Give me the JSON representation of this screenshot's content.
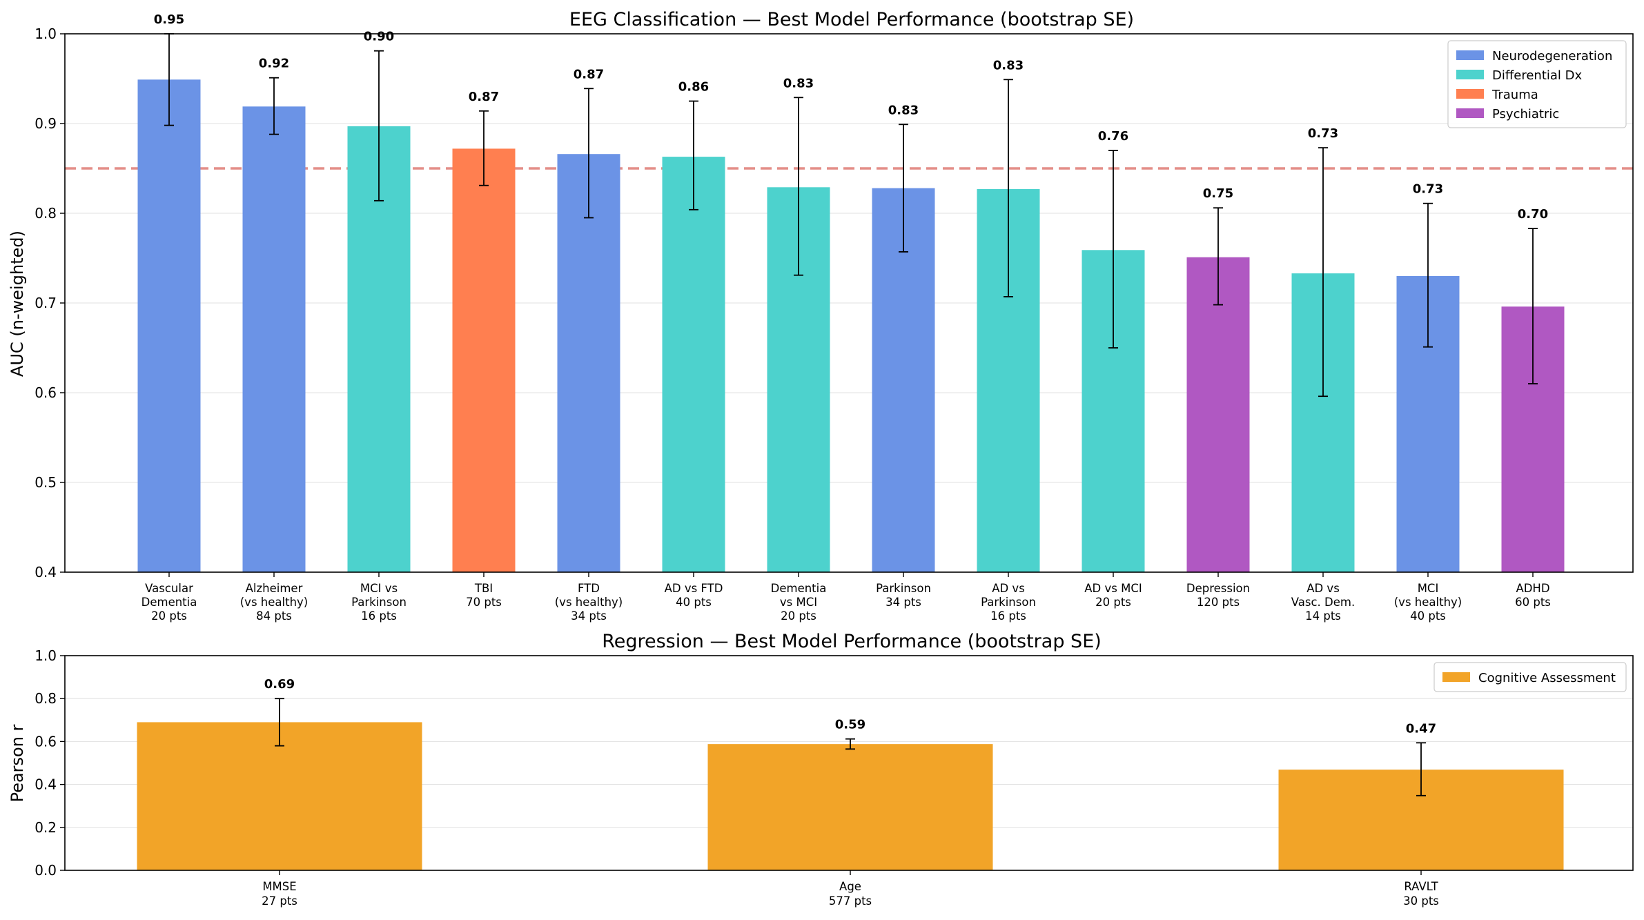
{
  "chart_data": [
    {
      "type": "bar",
      "title": "EEG Classification — Best Model Performance (bootstrap SE)",
      "xlabel": "",
      "ylabel": "AUC (n-weighted)",
      "ylim": [
        0.4,
        1.0
      ],
      "yticks": [
        "0.4",
        "0.5",
        "0.6",
        "0.7",
        "0.8",
        "0.9",
        "1.0"
      ],
      "reference_line": 0.85,
      "legend_position": "top-right",
      "legend": [
        {
          "name": "Neurodegeneration",
          "color": "#6b93e6"
        },
        {
          "name": "Differential Dx",
          "color": "#4dd2cd"
        },
        {
          "name": "Trauma",
          "color": "#ff7f50"
        },
        {
          "name": "Psychiatric",
          "color": "#b058c2"
        }
      ],
      "bars": [
        {
          "lines": [
            "Vascular",
            "Dementia",
            "20 pts"
          ],
          "value": 0.949,
          "err_lo": 0.898,
          "err_hi": 1.0,
          "label": "0.95",
          "group": "Neurodegeneration"
        },
        {
          "lines": [
            "Alzheimer",
            "(vs healthy)",
            "84 pts"
          ],
          "value": 0.919,
          "err_lo": 0.888,
          "err_hi": 0.951,
          "label": "0.92",
          "group": "Neurodegeneration"
        },
        {
          "lines": [
            "MCI vs",
            "Parkinson",
            "16 pts"
          ],
          "value": 0.897,
          "err_lo": 0.814,
          "err_hi": 0.981,
          "label": "0.90",
          "group": "Differential Dx"
        },
        {
          "lines": [
            "TBI",
            "70 pts"
          ],
          "value": 0.872,
          "err_lo": 0.831,
          "err_hi": 0.914,
          "label": "0.87",
          "group": "Trauma"
        },
        {
          "lines": [
            "FTD",
            "(vs healthy)",
            "34 pts"
          ],
          "value": 0.866,
          "err_lo": 0.795,
          "err_hi": 0.939,
          "label": "0.87",
          "group": "Neurodegeneration"
        },
        {
          "lines": [
            "AD vs FTD",
            "40 pts"
          ],
          "value": 0.863,
          "err_lo": 0.804,
          "err_hi": 0.925,
          "label": "0.86",
          "group": "Differential Dx"
        },
        {
          "lines": [
            "Dementia",
            "vs MCI",
            "20 pts"
          ],
          "value": 0.829,
          "err_lo": 0.731,
          "err_hi": 0.929,
          "label": "0.83",
          "group": "Differential Dx"
        },
        {
          "lines": [
            "Parkinson",
            "34 pts"
          ],
          "value": 0.828,
          "err_lo": 0.757,
          "err_hi": 0.899,
          "label": "0.83",
          "group": "Neurodegeneration"
        },
        {
          "lines": [
            "AD vs",
            "Parkinson",
            "16 pts"
          ],
          "value": 0.827,
          "err_lo": 0.707,
          "err_hi": 0.949,
          "label": "0.83",
          "group": "Differential Dx"
        },
        {
          "lines": [
            "AD vs MCI",
            "20 pts"
          ],
          "value": 0.759,
          "err_lo": 0.65,
          "err_hi": 0.87,
          "label": "0.76",
          "group": "Differential Dx"
        },
        {
          "lines": [
            "Depression",
            "120 pts"
          ],
          "value": 0.751,
          "err_lo": 0.698,
          "err_hi": 0.806,
          "label": "0.75",
          "group": "Psychiatric"
        },
        {
          "lines": [
            "AD vs",
            "Vasc. Dem.",
            "14 pts"
          ],
          "value": 0.733,
          "err_lo": 0.596,
          "err_hi": 0.873,
          "label": "0.73",
          "group": "Differential Dx"
        },
        {
          "lines": [
            "MCI",
            "(vs healthy)",
            "40 pts"
          ],
          "value": 0.73,
          "err_lo": 0.651,
          "err_hi": 0.811,
          "label": "0.73",
          "group": "Neurodegeneration"
        },
        {
          "lines": [
            "ADHD",
            "60 pts"
          ],
          "value": 0.696,
          "err_lo": 0.61,
          "err_hi": 0.783,
          "label": "0.70",
          "group": "Psychiatric"
        }
      ]
    },
    {
      "type": "bar",
      "title": "Regression — Best Model Performance (bootstrap SE)",
      "xlabel": "",
      "ylabel": "Pearson r",
      "ylim": [
        0.0,
        1.0
      ],
      "yticks": [
        "0.0",
        "0.2",
        "0.4",
        "0.6",
        "0.8",
        "1.0"
      ],
      "legend_position": "top-right",
      "legend": [
        {
          "name": "Cognitive Assessment",
          "color": "#f2a428"
        }
      ],
      "bars": [
        {
          "lines": [
            "MMSE",
            "27 pts"
          ],
          "value": 0.69,
          "err_lo": 0.58,
          "err_hi": 0.8,
          "label": "0.69",
          "group": "Cognitive Assessment"
        },
        {
          "lines": [
            "Age",
            "577 pts"
          ],
          "value": 0.588,
          "err_lo": 0.565,
          "err_hi": 0.612,
          "label": "0.59",
          "group": "Cognitive Assessment"
        },
        {
          "lines": [
            "RAVLT",
            "30 pts"
          ],
          "value": 0.469,
          "err_lo": 0.348,
          "err_hi": 0.594,
          "label": "0.47",
          "group": "Cognitive Assessment"
        }
      ]
    }
  ]
}
